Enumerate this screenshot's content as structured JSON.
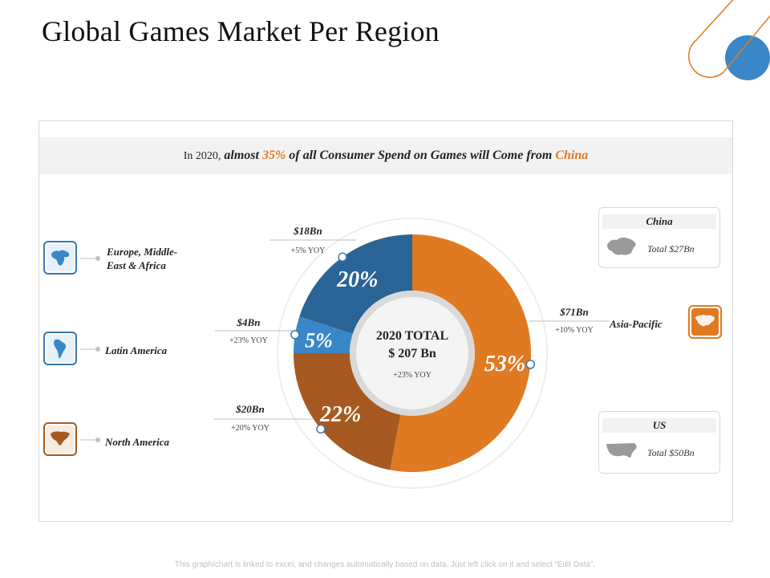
{
  "title": "Global Games Market Per Region",
  "headline": {
    "prefix": "In 2020,",
    "p1": " almost ",
    "pct": "35%",
    "p2": " of all Consumer Spend on Games will Come from ",
    "country": "China"
  },
  "center": {
    "line1": "2020 TOTAL",
    "line2": "$ 207 Bn",
    "yoy": "+23% YOY"
  },
  "regions": [
    {
      "label_line1": "Europe, Middle-",
      "label_line2": "East & Africa",
      "icon": "europe-map-icon"
    },
    {
      "label_line1": "Latin America",
      "icon": "latin-america-map-icon"
    },
    {
      "label_line1": "North America",
      "icon": "north-america-map-icon"
    },
    {
      "label_line1": "Asia-Pacific",
      "icon": "asia-map-icon"
    }
  ],
  "cards": [
    {
      "header": "China",
      "total": "Total $27Bn",
      "icon": "china-map-icon"
    },
    {
      "header": "US",
      "total": "Total $50Bn",
      "icon": "us-map-icon"
    }
  ],
  "footer": "This graph/chart is linked to excel, and changes automatically based on data. Just left click on it and select “Edit Data”.",
  "colors": {
    "orange": "#e07a22",
    "dark_blue": "#2a6496",
    "light_blue": "#3a87c8",
    "brown": "#a65a21"
  },
  "chart_data": {
    "type": "pie",
    "title": "Global Games Market Per Region",
    "categories": [
      "Asia-Pacific",
      "North America",
      "Latin America",
      "Europe, Middle-East & Africa"
    ],
    "values": [
      53,
      22,
      5,
      20
    ],
    "labels": [
      "53%",
      "22%",
      "5%",
      "20%"
    ],
    "amounts": [
      "$71Bn",
      "$20Bn",
      "$4Bn",
      "$18Bn"
    ],
    "yoy": [
      "+10% YOY",
      "+20% YOY",
      "+23% YOY",
      "+5% YOY"
    ],
    "colors": [
      "#e07a22",
      "#a65a21",
      "#3a87c8",
      "#2a6496"
    ],
    "total": "$ 207 Bn"
  }
}
